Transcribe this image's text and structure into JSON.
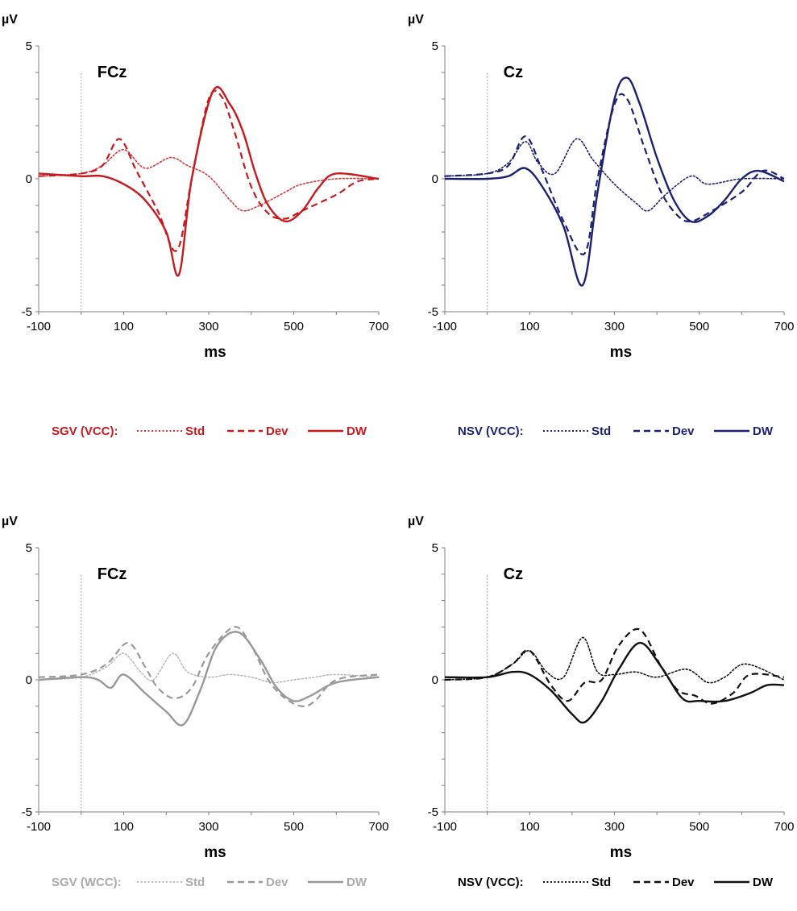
{
  "chart_data": [
    {
      "type": "line",
      "panel": "top-left",
      "electrode": "FCz",
      "xlabel": "ms",
      "ylabel": "µV",
      "xlim": [
        -100,
        700
      ],
      "ylim": [
        -5,
        5
      ],
      "x_ticks": [
        "-100",
        "100",
        "300",
        "500",
        "700"
      ],
      "y_ticks": [
        "5",
        "0",
        "-5"
      ],
      "legend_group": "SGV (VCC):",
      "legend_color": "#c8191e",
      "series": [
        {
          "name": "Std",
          "color": "#d9393e",
          "style": "dotted",
          "x": [
            -100,
            0,
            50,
            100,
            150,
            210,
            250,
            300,
            350,
            380,
            420,
            480,
            520,
            600,
            700
          ],
          "y": [
            0.1,
            0.2,
            0.5,
            1.1,
            0.4,
            0.8,
            0.5,
            0.1,
            -0.8,
            -1.2,
            -1.0,
            -0.5,
            -0.2,
            0.0,
            0.0
          ]
        },
        {
          "name": "Dev",
          "color": "#c8191e",
          "style": "dashed",
          "x": [
            -100,
            0,
            50,
            90,
            130,
            180,
            225,
            260,
            300,
            330,
            360,
            400,
            440,
            480,
            520,
            600,
            650,
            700
          ],
          "y": [
            0.1,
            0.2,
            0.5,
            1.5,
            0.3,
            -1.2,
            -2.7,
            0.0,
            3.0,
            3.1,
            1.8,
            -0.3,
            -1.3,
            -1.5,
            -1.2,
            -0.6,
            -0.1,
            0.0
          ]
        },
        {
          "name": "DW",
          "color": "#c8191e",
          "style": "solid",
          "x": [
            -100,
            0,
            50,
            100,
            150,
            200,
            230,
            260,
            310,
            350,
            380,
            410,
            440,
            480,
            520,
            560,
            600,
            700
          ],
          "y": [
            0.2,
            0.1,
            0.1,
            -0.2,
            -0.8,
            -2.0,
            -3.6,
            0.0,
            3.3,
            2.8,
            1.8,
            0.2,
            -1.0,
            -1.6,
            -1.2,
            -0.3,
            0.2,
            0.0
          ]
        }
      ]
    },
    {
      "type": "line",
      "panel": "top-right",
      "electrode": "Cz",
      "xlabel": "ms",
      "ylabel": "µV",
      "xlim": [
        -100,
        700
      ],
      "ylim": [
        -5,
        5
      ],
      "x_ticks": [
        "-100",
        "100",
        "300",
        "500",
        "700"
      ],
      "y_ticks": [
        "5",
        "0",
        "-5"
      ],
      "legend_group": "NSV (VCC):",
      "legend_color": "#1b2170",
      "series": [
        {
          "name": "Std",
          "color": "#1b2170",
          "style": "dotted",
          "x": [
            -100,
            0,
            50,
            90,
            120,
            160,
            210,
            250,
            300,
            350,
            380,
            420,
            480,
            520,
            600,
            700
          ],
          "y": [
            0.1,
            0.2,
            0.6,
            1.4,
            0.6,
            0.2,
            1.5,
            0.7,
            -0.2,
            -0.9,
            -1.2,
            -0.6,
            0.1,
            -0.2,
            0.0,
            0.0
          ]
        },
        {
          "name": "Dev",
          "color": "#1b2170",
          "style": "dashed",
          "x": [
            -100,
            0,
            50,
            90,
            130,
            180,
            230,
            260,
            300,
            330,
            370,
            410,
            450,
            480,
            520,
            600,
            650,
            700
          ],
          "y": [
            0.1,
            0.2,
            0.5,
            1.6,
            0.3,
            -1.6,
            -2.8,
            0.0,
            2.8,
            3.0,
            1.2,
            -0.5,
            -1.4,
            -1.6,
            -1.3,
            -0.5,
            0.3,
            0.0
          ]
        },
        {
          "name": "DW",
          "color": "#1b2170",
          "style": "solid",
          "x": [
            -100,
            0,
            50,
            90,
            130,
            180,
            225,
            260,
            300,
            330,
            360,
            400,
            440,
            480,
            520,
            560,
            600,
            640,
            700
          ],
          "y": [
            0.0,
            0.0,
            0.1,
            0.4,
            -0.3,
            -1.8,
            -4.0,
            -0.5,
            3.0,
            3.8,
            2.8,
            0.8,
            -0.8,
            -1.6,
            -1.4,
            -0.8,
            0.0,
            0.3,
            -0.1
          ]
        }
      ]
    },
    {
      "type": "line",
      "panel": "bottom-left",
      "electrode": "FCz",
      "xlabel": "ms",
      "ylabel": "µV",
      "xlim": [
        -100,
        700
      ],
      "ylim": [
        -5,
        5
      ],
      "x_ticks": [
        "-100",
        "100",
        "300",
        "500",
        "700"
      ],
      "y_ticks": [
        "5",
        "0",
        "-5"
      ],
      "legend_group": "SGV (WCC):",
      "legend_color": "#aaaaaa",
      "series": [
        {
          "name": "Std",
          "color": "#bbbbbb",
          "style": "dotted",
          "x": [
            -100,
            0,
            60,
            100,
            140,
            170,
            215,
            250,
            300,
            350,
            400,
            450,
            500,
            550,
            600,
            700
          ],
          "y": [
            0.0,
            0.1,
            0.5,
            1.0,
            0.3,
            0.0,
            1.0,
            0.3,
            0.1,
            0.2,
            0.1,
            -0.1,
            0.0,
            0.1,
            0.2,
            0.1
          ]
        },
        {
          "name": "Dev",
          "color": "#999999",
          "style": "dashed",
          "x": [
            -100,
            0,
            60,
            110,
            150,
            180,
            220,
            260,
            300,
            360,
            400,
            440,
            480,
            520,
            550,
            600,
            700
          ],
          "y": [
            0.1,
            0.2,
            0.6,
            1.4,
            0.5,
            -0.3,
            -0.7,
            -0.3,
            1.0,
            2.0,
            1.3,
            0.0,
            -0.7,
            -1.0,
            -0.8,
            0.0,
            0.2
          ]
        },
        {
          "name": "DW",
          "color": "#999999",
          "style": "solid",
          "x": [
            -100,
            0,
            40,
            70,
            100,
            150,
            200,
            240,
            280,
            320,
            370,
            420,
            460,
            500,
            540,
            600,
            700
          ],
          "y": [
            0.0,
            0.1,
            0.0,
            -0.3,
            0.2,
            -0.5,
            -1.2,
            -1.7,
            -0.4,
            1.3,
            1.8,
            0.8,
            -0.3,
            -0.8,
            -0.6,
            -0.1,
            0.1
          ]
        }
      ]
    },
    {
      "type": "line",
      "panel": "bottom-right",
      "electrode": "Cz",
      "xlabel": "ms",
      "ylabel": "µV",
      "xlim": [
        -100,
        700
      ],
      "ylim": [
        -5,
        5
      ],
      "x_ticks": [
        "-100",
        "100",
        "300",
        "500",
        "700"
      ],
      "y_ticks": [
        "5",
        "0",
        "-5"
      ],
      "legend_group": "NSV (VCC):",
      "legend_color": "#000000",
      "series": [
        {
          "name": "Std",
          "color": "#111111",
          "style": "dotted",
          "x": [
            -100,
            0,
            60,
            100,
            140,
            180,
            225,
            260,
            300,
            350,
            400,
            470,
            520,
            560,
            610,
            700
          ],
          "y": [
            0.0,
            0.1,
            0.6,
            1.1,
            0.3,
            0.1,
            1.6,
            0.3,
            0.2,
            0.3,
            0.1,
            0.4,
            -0.1,
            0.1,
            0.6,
            0.0
          ]
        },
        {
          "name": "Dev",
          "color": "#111111",
          "style": "dashed",
          "x": [
            -100,
            0,
            60,
            100,
            150,
            190,
            230,
            270,
            310,
            360,
            410,
            450,
            490,
            530,
            580,
            620,
            700
          ],
          "y": [
            0.0,
            0.1,
            0.6,
            1.1,
            -0.2,
            -0.8,
            -0.1,
            0.0,
            1.3,
            1.9,
            0.5,
            -0.4,
            -0.6,
            -0.9,
            -0.5,
            0.2,
            0.1
          ]
        },
        {
          "name": "DW",
          "color": "#111111",
          "style": "solid",
          "x": [
            -100,
            0,
            60,
            100,
            150,
            200,
            230,
            270,
            310,
            360,
            410,
            460,
            500,
            560,
            620,
            660,
            700
          ],
          "y": [
            0.1,
            0.1,
            0.3,
            0.2,
            -0.4,
            -1.3,
            -1.6,
            -0.8,
            0.4,
            1.4,
            0.5,
            -0.7,
            -0.8,
            -0.8,
            -0.5,
            -0.2,
            -0.2
          ]
        }
      ]
    }
  ]
}
